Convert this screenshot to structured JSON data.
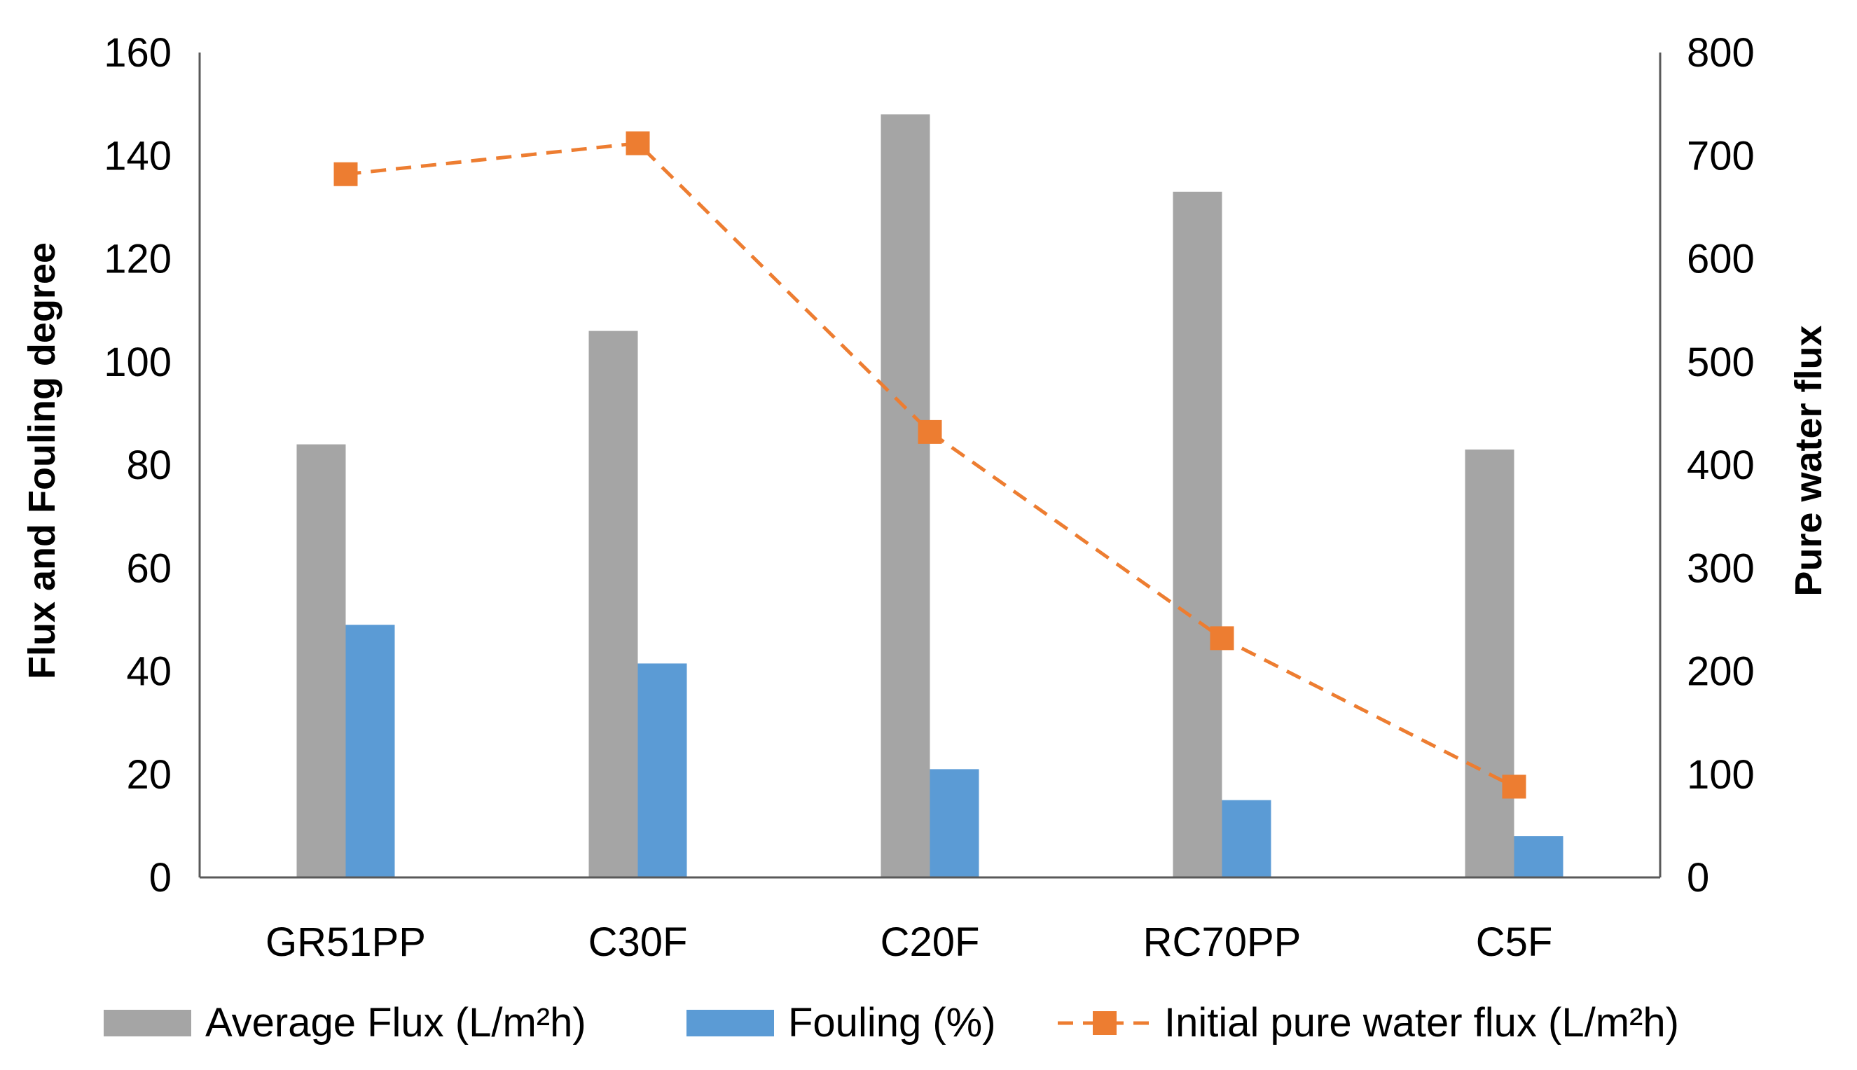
{
  "chart_data": {
    "type": "bar",
    "categories": [
      "GR51PP",
      "C30F",
      "C20F",
      "RC70PP",
      "C5F"
    ],
    "series": [
      {
        "name": "Average Flux (L/m²h)",
        "kind": "bar",
        "axis": "left",
        "color": "#a5a5a5",
        "values": [
          84,
          106,
          148,
          133,
          83
        ]
      },
      {
        "name": "Fouling (%)",
        "kind": "bar",
        "axis": "left",
        "color": "#5b9bd5",
        "values": [
          49,
          41.5,
          21,
          15,
          8
        ]
      },
      {
        "name": "Initial pure water flux (L/m²h)",
        "kind": "line",
        "axis": "right",
        "color": "#ed7d31",
        "line_style": "dashed",
        "marker": "square",
        "values": [
          682,
          712,
          432,
          232,
          88
        ]
      }
    ],
    "ylabel": "Flux and Fouling degree",
    "ylabel_right": "Pure water flux",
    "ylim": [
      0,
      160
    ],
    "ylim_right": [
      0,
      800
    ],
    "yticks": [
      "0",
      "20",
      "40",
      "60",
      "80",
      "100",
      "120",
      "140",
      "160"
    ],
    "yticks_right": [
      "0",
      "100",
      "200",
      "300",
      "400",
      "500",
      "600",
      "700",
      "800"
    ],
    "grid": false,
    "legend_position": "bottom"
  }
}
